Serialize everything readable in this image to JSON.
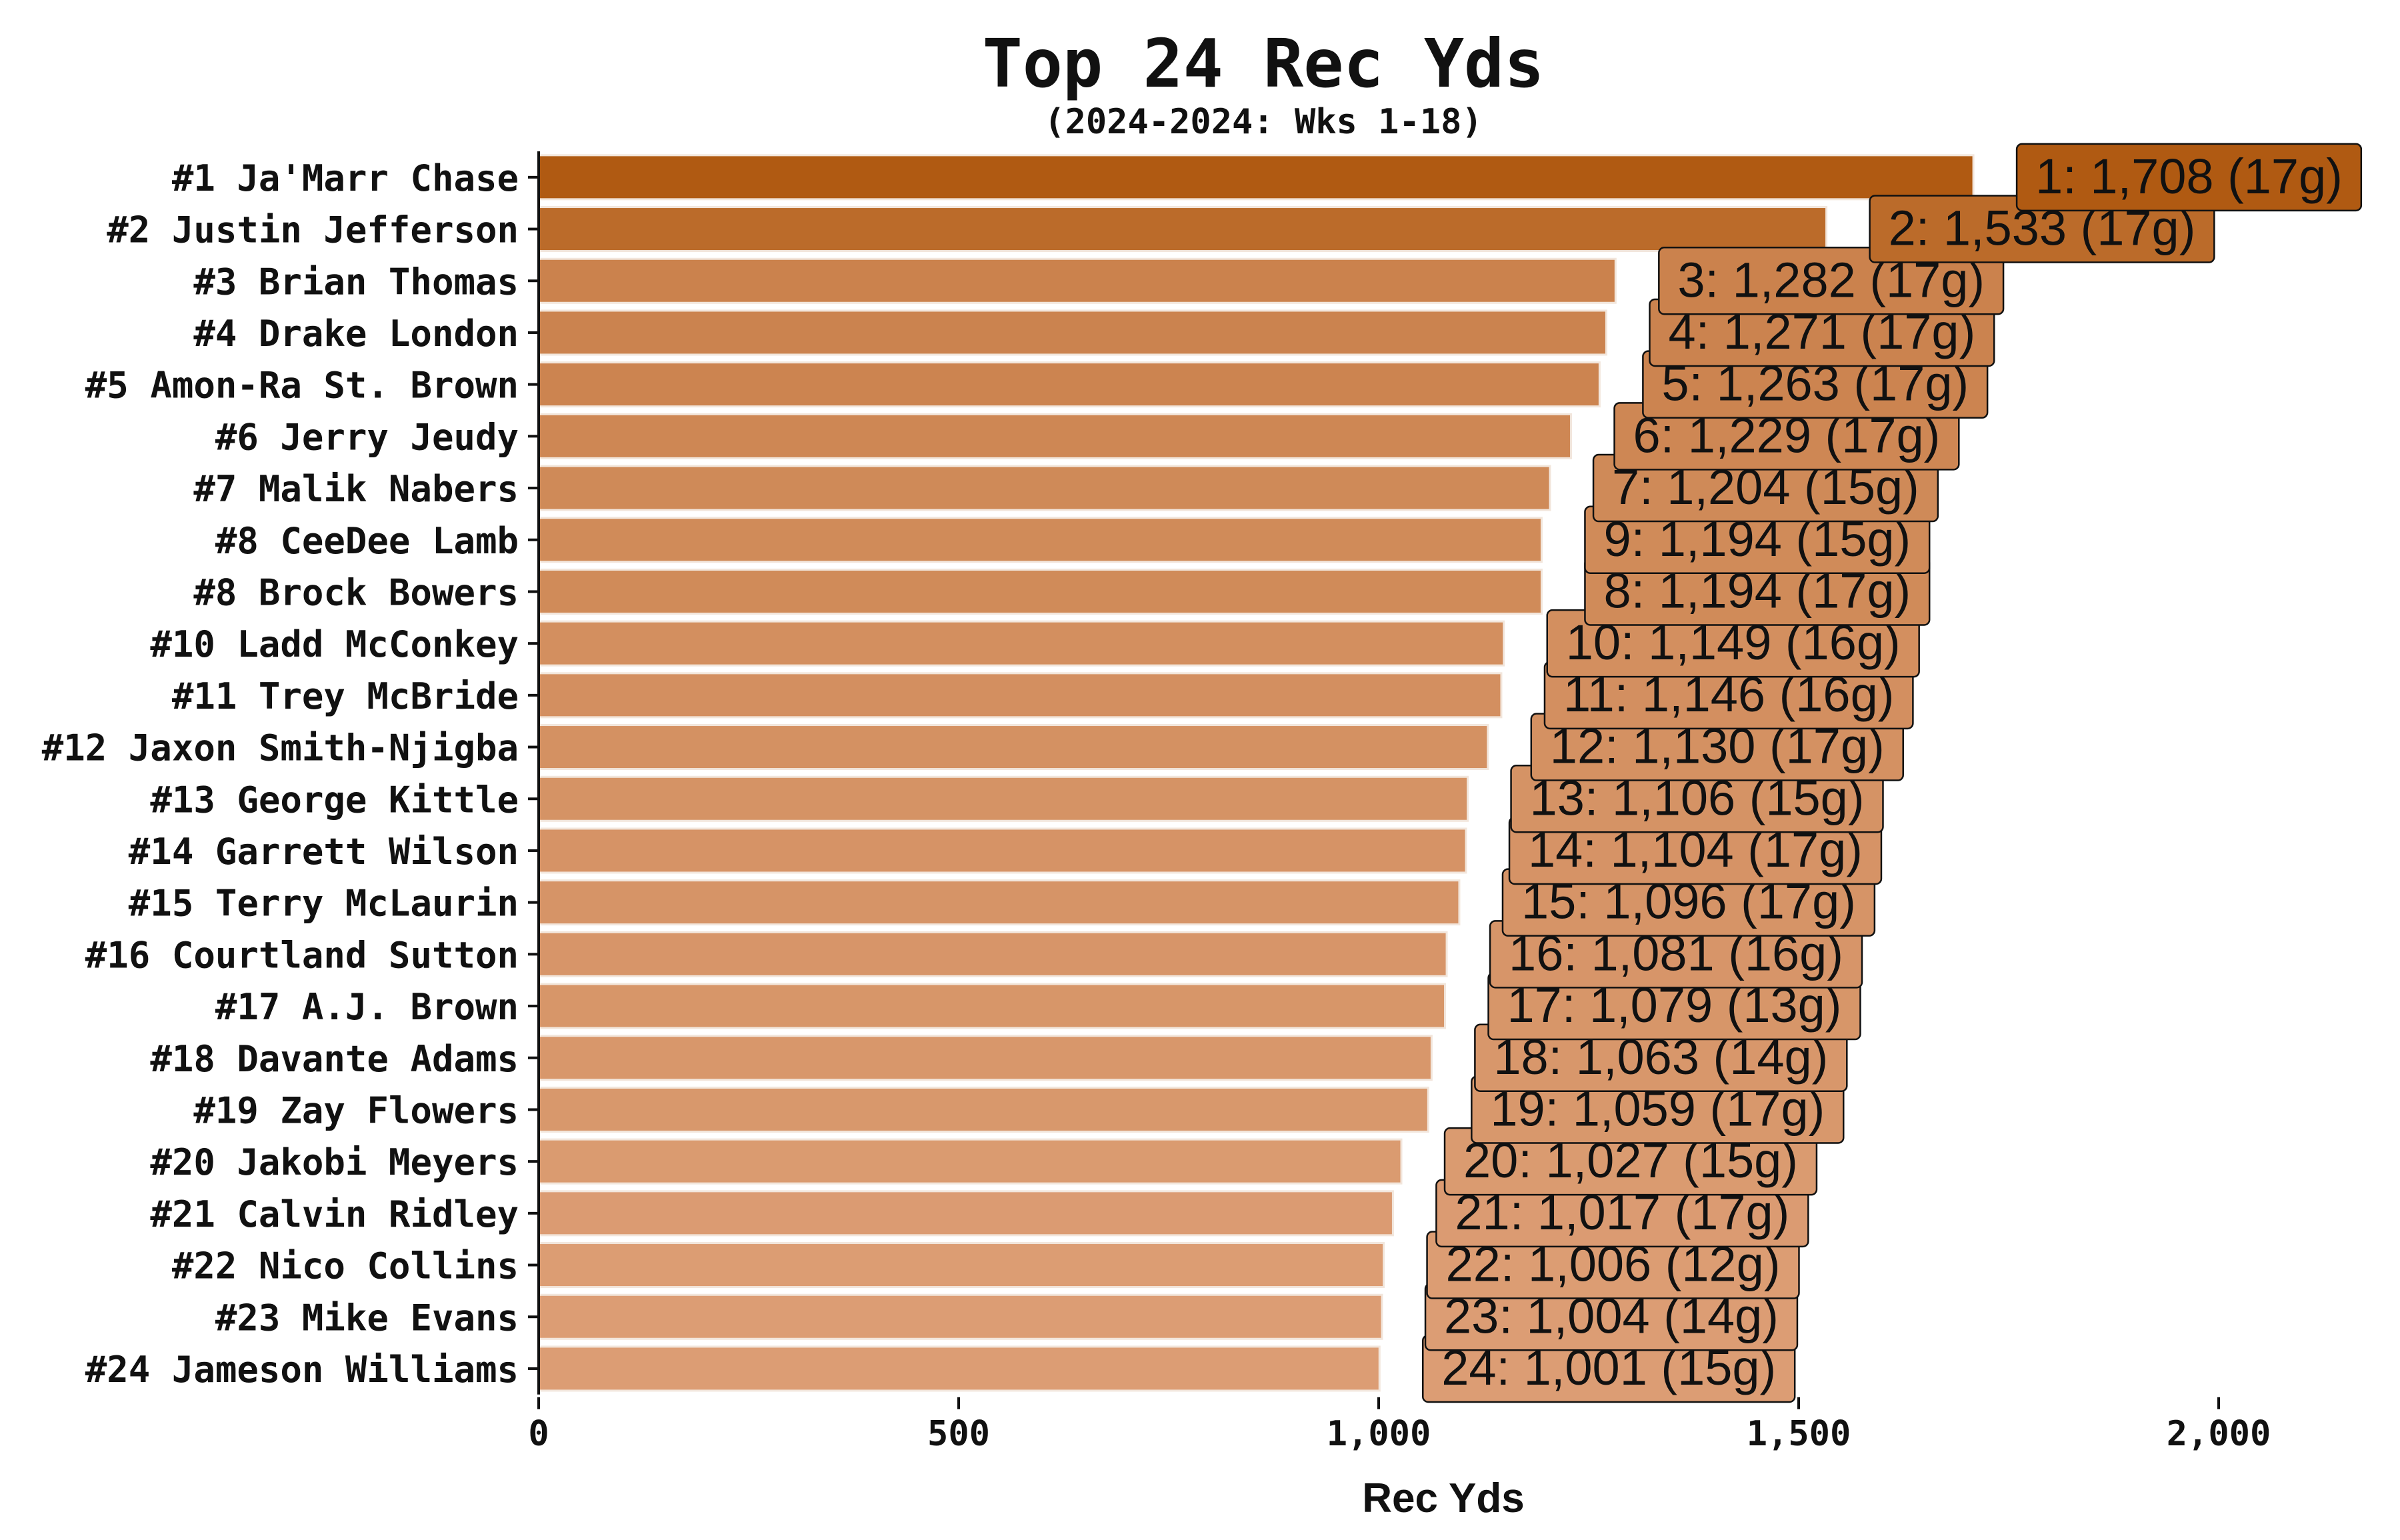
{
  "chart_data": {
    "type": "bar",
    "orientation": "horizontal",
    "title": "Top 24 Rec Yds",
    "subtitle": "(2024-2024: Wks 1-18)",
    "xlabel": "Rec Yds",
    "ylabel": "",
    "xlim": [
      0,
      2200
    ],
    "xticks": [
      0,
      500,
      1000,
      1500,
      2000
    ],
    "xtick_labels": [
      "0",
      "500",
      "1,000",
      "1,500",
      "2,000"
    ],
    "grid": false,
    "legend": "none",
    "bar_color_range": [
      "#b05a12",
      "#dc9d74"
    ],
    "categories": [
      "#1 Ja'Marr Chase",
      "#2 Justin Jefferson",
      "#3 Brian Thomas",
      "#4 Drake London",
      "#5 Amon-Ra St. Brown",
      "#6 Jerry Jeudy",
      "#7 Malik Nabers",
      "#8 CeeDee Lamb",
      "#8 Brock Bowers",
      "#10 Ladd McConkey",
      "#11 Trey McBride",
      "#12 Jaxon Smith-Njigba",
      "#13 George Kittle",
      "#14 Garrett Wilson",
      "#15 Terry McLaurin",
      "#16 Courtland Sutton",
      "#17 A.J. Brown",
      "#18 Davante Adams",
      "#19 Zay Flowers",
      "#20 Jakobi Meyers",
      "#21 Calvin Ridley",
      "#22 Nico Collins",
      "#23 Mike Evans",
      "#24 Jameson Williams"
    ],
    "values": [
      1708,
      1533,
      1282,
      1271,
      1263,
      1229,
      1204,
      1194,
      1194,
      1149,
      1146,
      1130,
      1106,
      1104,
      1096,
      1081,
      1079,
      1063,
      1059,
      1027,
      1017,
      1006,
      1004,
      1001
    ],
    "data_labels": [
      "1: 1,708 (17g)",
      "2: 1,533 (17g)",
      "3: 1,282 (17g)",
      "4: 1,271 (17g)",
      "5: 1,263 (17g)",
      "6: 1,229 (17g)",
      "7: 1,204 (15g)",
      "8: 1,194 (17g)",
      "9: 1,194 (15g)",
      "10: 1,149 (16g)",
      "11: 1,146 (16g)",
      "12: 1,130 (17g)",
      "13: 1,106 (15g)",
      "14: 1,104 (17g)",
      "15: 1,096 (17g)",
      "16: 1,081 (16g)",
      "17: 1,079 (13g)",
      "18: 1,063 (14g)",
      "19: 1,059 (17g)",
      "20: 1,027 (15g)",
      "21: 1,017 (17g)",
      "22: 1,006 (12g)",
      "23: 1,004 (14g)",
      "24: 1,001 (15g)"
    ],
    "label_row_index": [
      0,
      1,
      2,
      3,
      4,
      5,
      6,
      8,
      7,
      9,
      10,
      11,
      12,
      13,
      14,
      15,
      16,
      17,
      18,
      19,
      20,
      21,
      22,
      23
    ]
  }
}
